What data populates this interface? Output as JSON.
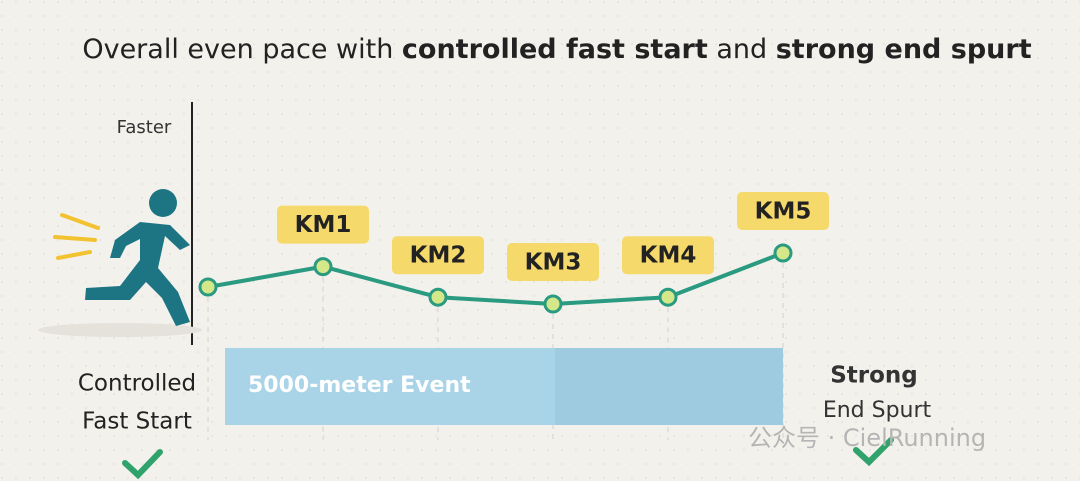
{
  "chart_data": {
    "type": "line",
    "title_segments": [
      {
        "text": "Overall even pace with ",
        "bold": false
      },
      {
        "text": "controlled fast start",
        "bold": true
      },
      {
        "text": " and ",
        "bold": false
      },
      {
        "text": "strong end spurt",
        "bold": true
      }
    ],
    "y_label": "Faster",
    "categories": [
      null,
      "KM1",
      "KM2",
      "KM3",
      "KM4",
      "KM5"
    ],
    "values": [
      45,
      51,
      42,
      40,
      42,
      55
    ],
    "ylim": [
      0,
      100
    ],
    "color": "#2a9a80",
    "marker_color": "#d4e88a",
    "label_color": "#f6d96b",
    "band_label": "5000-meter Event",
    "left_note": [
      "Controlled",
      "Fast Start"
    ],
    "right_note": [
      "Strong",
      "End Spurt"
    ],
    "watermark": "公众号 · CielRunning"
  }
}
